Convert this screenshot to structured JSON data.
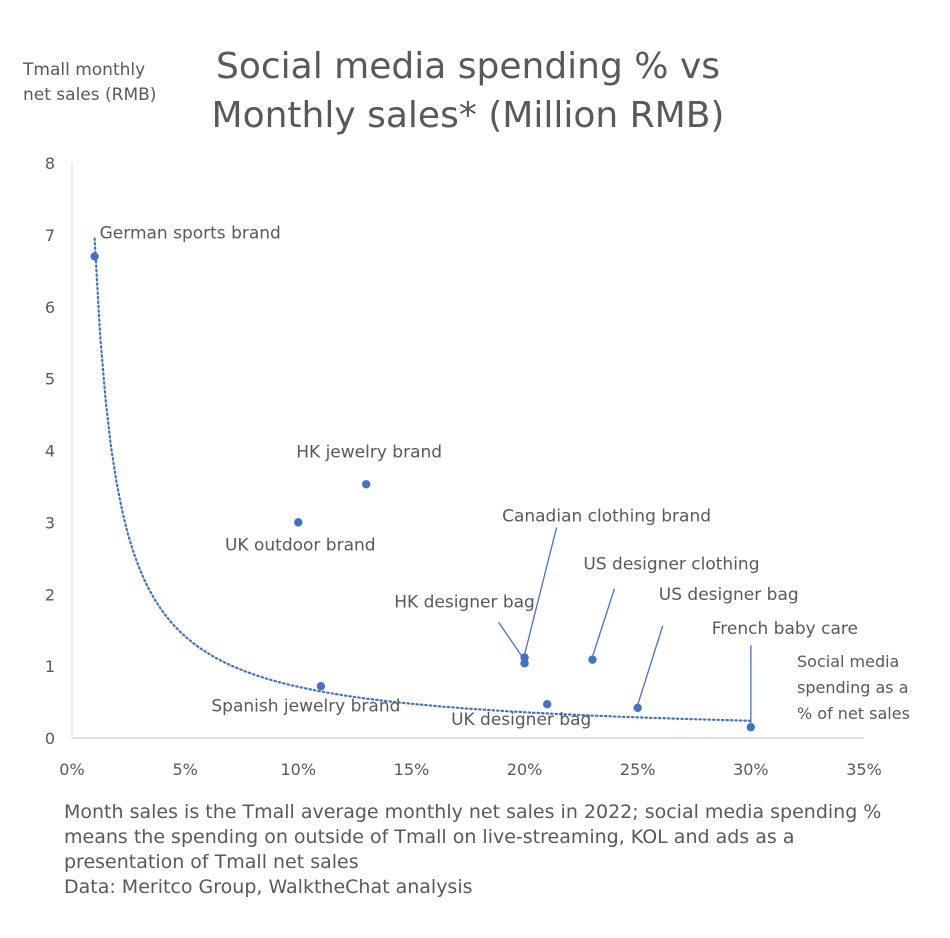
{
  "chart_data": {
    "type": "scatter",
    "title_lines": [
      "Social media spending % vs",
      "Monthly sales* (Million RMB)"
    ],
    "ylabel_lines": [
      "Tmall monthly",
      "net sales (RMB)"
    ],
    "xlabel_lines": [
      "Social media",
      "spending as a",
      "% of net sales"
    ],
    "xlim": [
      0,
      0.35
    ],
    "ylim": [
      0,
      8
    ],
    "x_ticks": [
      0,
      0.05,
      0.1,
      0.15,
      0.2,
      0.25,
      0.3,
      0.35
    ],
    "x_tick_labels": [
      "0%",
      "5%",
      "10%",
      "15%",
      "20%",
      "25%",
      "30%",
      "35%"
    ],
    "y_ticks": [
      0,
      1,
      2,
      3,
      4,
      5,
      6,
      7,
      8
    ],
    "y_tick_labels": [
      "0",
      "1",
      "2",
      "3",
      "4",
      "5",
      "6",
      "7",
      "8"
    ],
    "point_color": "#4472C4",
    "trendline": {
      "type": "power",
      "style": "dotted",
      "color": "#4472C4",
      "x_range": [
        0.01,
        0.3
      ],
      "start_y": 6.95,
      "end_y": 0.24
    },
    "points": [
      {
        "label": "German sports brand",
        "x": 0.01,
        "y": 6.7
      },
      {
        "label": "HK jewelry brand",
        "x": 0.13,
        "y": 3.53
      },
      {
        "label": "UK outdoor brand",
        "x": 0.1,
        "y": 3.0
      },
      {
        "label": "Canadian clothing brand",
        "x": 0.2,
        "y": 1.12
      },
      {
        "label": "HK designer bag",
        "x": 0.2,
        "y": 1.04
      },
      {
        "label": "US designer clothing",
        "x": 0.23,
        "y": 1.09
      },
      {
        "label": "US designer bag",
        "x": 0.25,
        "y": 0.42
      },
      {
        "label": "French baby care",
        "x": 0.3,
        "y": 0.15
      },
      {
        "label": "Spanish jewelry brand",
        "x": 0.11,
        "y": 0.72
      },
      {
        "label": "UK designer bag",
        "x": 0.21,
        "y": 0.47
      }
    ],
    "footnote_lines": [
      "Month sales is the Tmall average monthly net sales in 2022; social media spending %",
      "means the spending on outside of Tmall on live-streaming, KOL and ads as a",
      "presentation of Tmall net sales",
      "Data:  Meritco Group, WalktheChat analysis"
    ]
  }
}
